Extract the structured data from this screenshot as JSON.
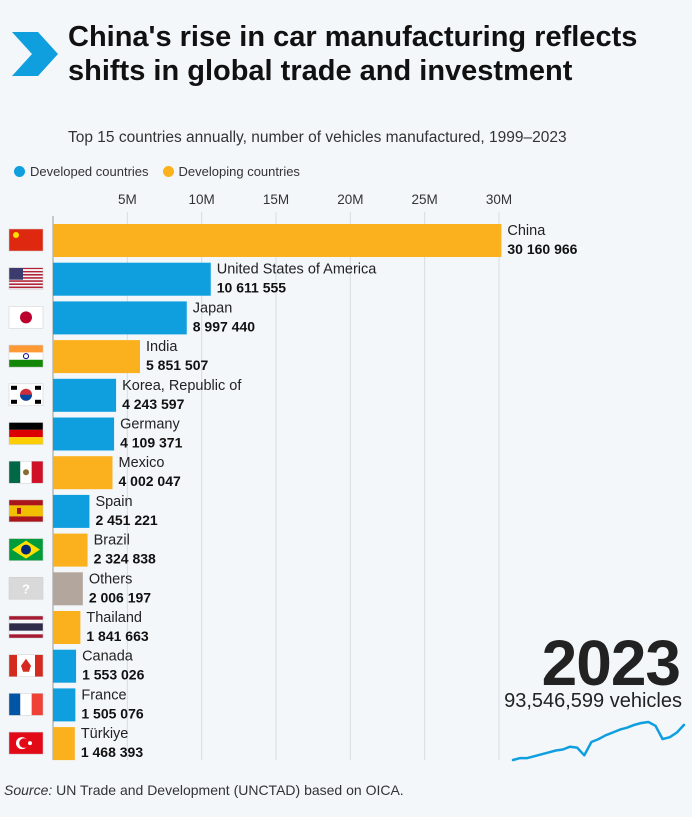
{
  "header": {
    "title": "China's rise in car manufacturing reflects shifts in global trade and investment",
    "subtitle": "Top 15 countries annually, number of vehicles manufactured, 1999–2023"
  },
  "legend": {
    "developed": "Developed countries",
    "developing": "Developing countries"
  },
  "colors": {
    "developed": "#0f9fdf",
    "developing": "#fbb11d",
    "other": "#b3a69c",
    "brand": "#0f9fdf"
  },
  "year_display": "2023",
  "total_display": "93,546,599 vehicles",
  "source": {
    "prefix": "Source:",
    "text": " UN Trade and Development (UNCTAD) based on OICA."
  },
  "chart_data": {
    "type": "bar",
    "orientation": "horizontal",
    "ticks": [
      "5M",
      "10M",
      "15M",
      "20M",
      "25M",
      "30M"
    ],
    "tick_values": [
      5000000,
      10000000,
      15000000,
      20000000,
      25000000,
      30000000
    ],
    "xlim": [
      0,
      30000000
    ],
    "categories": [
      "China",
      "United States of America",
      "Japan",
      "India",
      "Korea, Republic of",
      "Germany",
      "Mexico",
      "Spain",
      "Brazil",
      "Others",
      "Thailand",
      "Canada",
      "France",
      "Türkiye"
    ],
    "values": [
      30160966,
      10611555,
      8997440,
      5851507,
      4243597,
      4109371,
      4002047,
      2451221,
      2324838,
      2006197,
      1841663,
      1553026,
      1505076,
      1468393
    ],
    "value_labels": [
      "30 160 966",
      "10 611 555",
      "8 997 440",
      "5 851 507",
      "4 243 597",
      "4 109 371",
      "4 002 047",
      "2 451 221",
      "2 324 838",
      "2 006 197",
      "1 841 663",
      "1 553 026",
      "1 505 076",
      "1 468 393"
    ],
    "groups": [
      "developing",
      "developed",
      "developed",
      "developing",
      "developed",
      "developed",
      "developing",
      "developed",
      "developing",
      "other",
      "developing",
      "developed",
      "developed",
      "developing"
    ],
    "flags": [
      "china-flag",
      "usa-flag",
      "japan-flag",
      "india-flag",
      "korea-flag",
      "germany-flag",
      "mexico-flag",
      "spain-flag",
      "brazil-flag",
      "unknown-flag",
      "thailand-flag",
      "canada-flag",
      "france-flag",
      "turkiye-flag"
    ],
    "grid": true,
    "trend_line": {
      "description_shape": "rising sparkline of total annual production",
      "values": [
        56,
        58,
        58,
        60,
        62,
        64,
        66,
        67,
        70,
        69,
        61,
        75,
        78,
        82,
        85,
        88,
        90,
        93,
        95,
        96,
        92,
        78,
        80,
        85,
        93
      ]
    }
  }
}
